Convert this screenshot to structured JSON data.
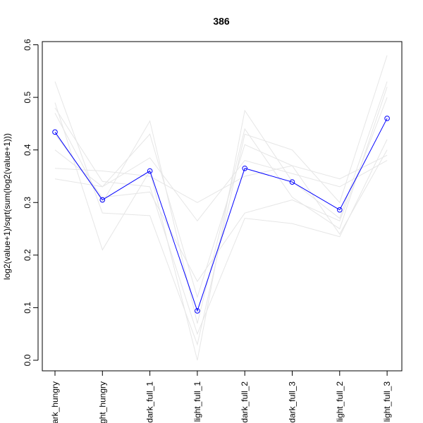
{
  "chart_data": {
    "type": "line",
    "title": "386",
    "xlabel": "",
    "ylabel": "log2(value+1)/sqrt(sum(log2(value+1)))",
    "ylim": [
      -0.02,
      0.6
    ],
    "yticks": [
      "0.0",
      "0.1",
      "0.2",
      "0.3",
      "0.4",
      "0.5",
      "0.6"
    ],
    "categories": [
      "dark_hungry",
      "light_hungry",
      "dark_full_1",
      "light_full_1",
      "dark_full_2",
      "dark_full_3",
      "light_full_2",
      "light_full_3"
    ],
    "category_labels_visible": [
      "ark_hungry",
      "ght_hungry",
      "dark_full_1",
      "light_full_1",
      "dark_full_2",
      "dark_full_3",
      "light_full_2",
      "light_full_3"
    ],
    "highlight": {
      "values": [
        0.434,
        0.305,
        0.36,
        0.094,
        0.365,
        0.339,
        0.286,
        0.46
      ],
      "color": "#0000ff"
    },
    "background": {
      "color": "#e6e6e6",
      "series": [
        [
          0.53,
          0.28,
          0.275,
          0.03,
          0.43,
          0.4,
          0.3,
          0.58
        ],
        [
          0.49,
          0.21,
          0.36,
          0.0,
          0.475,
          0.34,
          0.27,
          0.53
        ],
        [
          0.47,
          0.3,
          0.455,
          0.07,
          0.44,
          0.31,
          0.25,
          0.52
        ],
        [
          0.4,
          0.33,
          0.43,
          0.12,
          0.41,
          0.37,
          0.24,
          0.4
        ],
        [
          0.365,
          0.36,
          0.35,
          0.3,
          0.35,
          0.37,
          0.345,
          0.39
        ],
        [
          0.345,
          0.33,
          0.385,
          0.265,
          0.38,
          0.355,
          0.33,
          0.38
        ],
        [
          0.43,
          0.31,
          0.32,
          0.15,
          0.28,
          0.305,
          0.265,
          0.5
        ],
        [
          0.48,
          0.34,
          0.33,
          0.05,
          0.27,
          0.26,
          0.235,
          0.42
        ]
      ]
    }
  }
}
